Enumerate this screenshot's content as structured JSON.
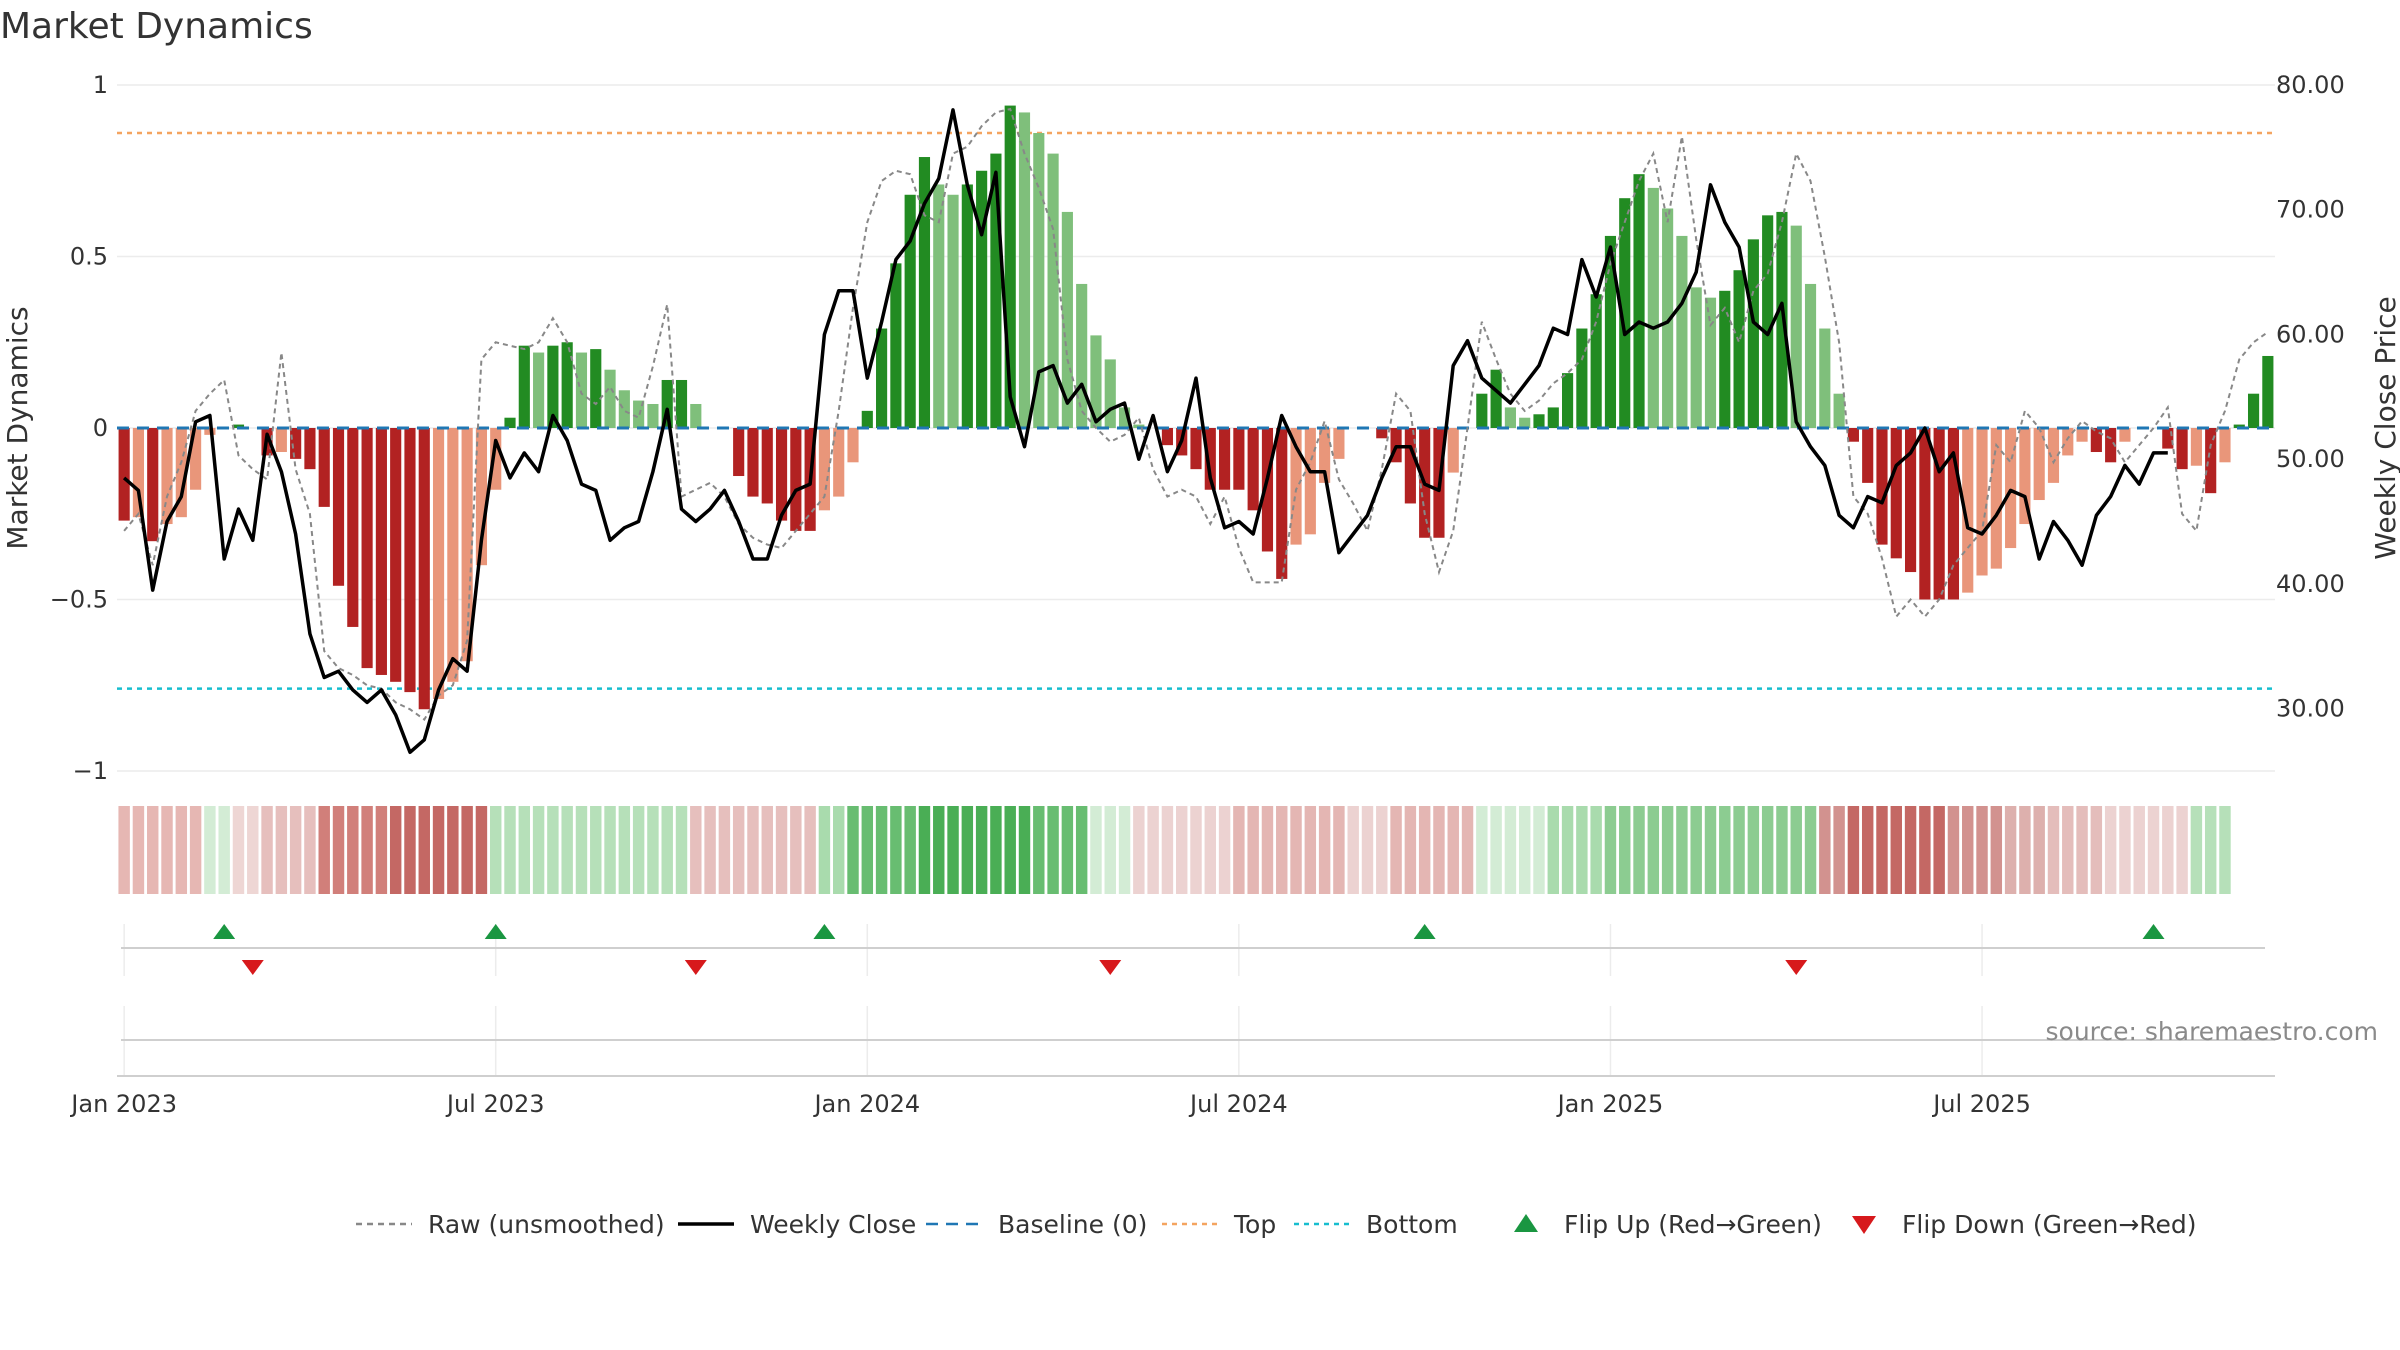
{
  "chart_data": {
    "type": "bar",
    "title": "Market Dynamics",
    "ylabel": "Market Dynamics",
    "y2label": "Weekly Close Price",
    "ylim": [
      -1,
      1
    ],
    "y2lim": [
      25,
      80
    ],
    "y_ticks": [
      "1",
      "0.5",
      "0",
      "−0.5",
      "−1"
    ],
    "y_tick_values": [
      1,
      0.5,
      0,
      -0.5,
      -1
    ],
    "y2_ticks": [
      "80.00",
      "70.00",
      "60.00",
      "50.00",
      "40.00",
      "30.00"
    ],
    "y2_tick_values": [
      80,
      70,
      60,
      50,
      40,
      30
    ],
    "x_ticks": [
      "Jan 2023",
      "Jul 2023",
      "Jan 2024",
      "Jul 2024",
      "Jan 2025",
      "Jul 2025"
    ],
    "x_tick_weeks": [
      1,
      27,
      53,
      79,
      105,
      131
    ],
    "top_level": 0.86,
    "bottom_level": -0.76,
    "grid": true,
    "legend_position": "bottom-center",
    "source": "source: sharemaestro.com",
    "colors": {
      "strong_green": "#228b22",
      "light_green": "#7fbf7b",
      "strong_red": "#b22222",
      "light_red": "#e9967a",
      "price": "#000000",
      "raw": "#888888",
      "baseline": "#1f77b4",
      "top": "#f4a460",
      "bottom": "#17becf",
      "flip_up": "#1a9641",
      "flip_down": "#d7191c"
    },
    "bar_values": [
      -0.27,
      -0.26,
      -0.33,
      -0.28,
      -0.26,
      -0.18,
      -0.02,
      0,
      0.01,
      0,
      -0.08,
      -0.07,
      -0.09,
      -0.12,
      -0.23,
      -0.46,
      -0.58,
      -0.7,
      -0.72,
      -0.74,
      -0.77,
      -0.82,
      -0.79,
      -0.74,
      -0.68,
      -0.4,
      -0.18,
      0.03,
      0.24,
      0.22,
      0.24,
      0.25,
      0.22,
      0.23,
      0.17,
      0.11,
      0.08,
      0.07,
      0.14,
      0.14,
      0.07,
      0,
      0,
      -0.14,
      -0.2,
      -0.22,
      -0.27,
      -0.3,
      -0.3,
      -0.24,
      -0.2,
      -0.1,
      0.05,
      0.29,
      0.48,
      0.68,
      0.79,
      0.71,
      0.68,
      0.71,
      0.75,
      0.8,
      0.94,
      0.92,
      0.86,
      0.8,
      0.63,
      0.42,
      0.27,
      0.2,
      0.06,
      0.01,
      0,
      -0.05,
      -0.08,
      -0.12,
      -0.18,
      -0.18,
      -0.18,
      -0.24,
      -0.36,
      -0.44,
      -0.34,
      -0.31,
      -0.16,
      -0.09,
      0,
      0,
      -0.03,
      -0.1,
      -0.22,
      -0.32,
      -0.32,
      -0.13,
      0,
      0.1,
      0.17,
      0.06,
      0.03,
      0.04,
      0.06,
      0.16,
      0.29,
      0.39,
      0.56,
      0.67,
      0.74,
      0.7,
      0.64,
      0.56,
      0.41,
      0.38,
      0.4,
      0.46,
      0.55,
      0.62,
      0.63,
      0.59,
      0.42,
      0.29,
      0.1,
      -0.04,
      -0.16,
      -0.34,
      -0.38,
      -0.42,
      -0.5,
      -0.5,
      -0.5,
      -0.48,
      -0.43,
      -0.41,
      -0.35,
      -0.28,
      -0.21,
      -0.16,
      -0.08,
      -0.04,
      -0.07,
      -0.1,
      -0.04,
      0,
      0,
      -0.06,
      -0.12,
      -0.11,
      -0.19,
      -0.1,
      0.01,
      0.1,
      0.21
    ],
    "raw_values": [
      -0.3,
      -0.25,
      -0.4,
      -0.2,
      -0.1,
      0.05,
      0.1,
      0.14,
      -0.08,
      -0.12,
      -0.15,
      0.22,
      -0.12,
      -0.25,
      -0.65,
      -0.7,
      -0.72,
      -0.75,
      -0.76,
      -0.8,
      -0.82,
      -0.85,
      -0.78,
      -0.75,
      -0.62,
      0.2,
      0.25,
      0.24,
      0.23,
      0.25,
      0.32,
      0.25,
      0.1,
      0.07,
      0.12,
      0.05,
      0.03,
      0.18,
      0.36,
      -0.2,
      -0.18,
      -0.16,
      -0.2,
      -0.28,
      -0.32,
      -0.34,
      -0.35,
      -0.3,
      -0.25,
      -0.2,
      0.05,
      0.35,
      0.6,
      0.72,
      0.75,
      0.74,
      0.62,
      0.6,
      0.8,
      0.82,
      0.88,
      0.92,
      0.93,
      0.8,
      0.7,
      0.58,
      0.2,
      0.05,
      0,
      -0.04,
      -0.02,
      0.03,
      -0.12,
      -0.2,
      -0.18,
      -0.2,
      -0.28,
      -0.2,
      -0.35,
      -0.45,
      -0.45,
      -0.45,
      -0.18,
      -0.1,
      0.02,
      -0.15,
      -0.22,
      -0.3,
      -0.12,
      0.1,
      0.05,
      -0.25,
      -0.42,
      -0.3,
      0.0,
      0.31,
      0.2,
      0.1,
      0.05,
      0.08,
      0.13,
      0.16,
      0.2,
      0.31,
      0.48,
      0.6,
      0.72,
      0.8,
      0.6,
      0.85,
      0.55,
      0.3,
      0.35,
      0.25,
      0.4,
      0.45,
      0.6,
      0.8,
      0.72,
      0.5,
      0.25,
      -0.2,
      -0.25,
      -0.38,
      -0.55,
      -0.5,
      -0.55,
      -0.5,
      -0.4,
      -0.35,
      -0.3,
      -0.05,
      -0.1,
      0.05,
      0.0,
      -0.1,
      -0.03,
      0.02,
      -0.01,
      -0.03,
      -0.1,
      -0.05,
      0.0,
      0.06,
      -0.25,
      -0.3,
      -0.05,
      0.05,
      0.2,
      0.25,
      0.28
    ],
    "price_values": [
      48.5,
      47.5,
      39.5,
      45,
      47,
      53,
      53.5,
      42,
      46,
      43.5,
      52,
      49,
      44,
      36,
      32.5,
      33,
      31.5,
      30.5,
      31.5,
      29.5,
      26.5,
      27.5,
      31.5,
      34,
      33,
      43.5,
      51.5,
      48.5,
      50.5,
      49,
      53.5,
      51.5,
      48,
      47.5,
      43.5,
      44.5,
      45,
      49,
      54,
      46,
      45,
      46,
      47.5,
      45,
      42,
      42,
      45.5,
      47.5,
      48,
      60,
      63.5,
      63.5,
      56.5,
      61,
      66,
      67.5,
      70.5,
      72.5,
      78,
      72,
      68,
      73,
      55,
      51,
      57,
      57.5,
      54.5,
      56,
      53,
      54,
      54.5,
      50,
      53.5,
      49,
      51.5,
      56.5,
      48.5,
      44.5,
      45,
      44,
      48.5,
      53.5,
      51,
      49,
      49,
      42.5,
      44,
      45.5,
      48.5,
      51,
      51,
      48,
      47.5,
      57.5,
      59.5,
      56.5,
      55.5,
      54.5,
      56,
      57.5,
      60.5,
      60,
      66,
      63,
      67,
      60,
      61,
      60.5,
      61,
      62.5,
      65,
      72,
      69,
      67,
      61,
      60,
      62.5,
      53,
      51,
      49.5,
      45.5,
      44.5,
      47,
      46.5,
      49.5,
      50.5,
      52.5,
      49,
      50.5,
      44.5,
      44,
      45.5,
      47.5,
      47,
      42,
      45,
      43.5,
      41.5,
      45.5,
      47,
      49.5,
      48,
      50.5,
      50.5
    ],
    "heat_colors": [
      "#e6b7b3",
      "#e6b7b3",
      "#e6b7b3",
      "#e6b7b3",
      "#e6b7b3",
      "#e6b7b3",
      "#d3ecd5",
      "#d3ecd5",
      "#eed6d4",
      "#eed6d4",
      "#e6bfbd",
      "#e6bfbd",
      "#e6bfbd",
      "#e6bfbd",
      "#d17f7a",
      "#d17f7a",
      "#d17f7a",
      "#d17f7a",
      "#d17f7a",
      "#c46864",
      "#c46864",
      "#c46864",
      "#c46864",
      "#c46864",
      "#c46864",
      "#c46864",
      "#b6e0b9",
      "#b6e0b9",
      "#b6e0b9",
      "#b6e0b9",
      "#b6e0b9",
      "#b6e0b9",
      "#b6e0b9",
      "#b6e0b9",
      "#b6e0b9",
      "#b6e0b9",
      "#b6e0b9",
      "#b6e0b9",
      "#b6e0b9",
      "#b6e0b9",
      "#e6bfbd",
      "#e6bfbd",
      "#e6bfbd",
      "#e6bfbd",
      "#e6bfbd",
      "#e6bfbd",
      "#e6bfbd",
      "#e6bfbd",
      "#e6bfbd",
      "#a9dbad",
      "#a9dbad",
      "#68bd71",
      "#68bd71",
      "#68bd71",
      "#68bd71",
      "#68bd71",
      "#4aae55",
      "#4aae55",
      "#4aae55",
      "#4aae55",
      "#4aae55",
      "#4aae55",
      "#4aae55",
      "#4aae55",
      "#68bd71",
      "#68bd71",
      "#68bd71",
      "#68bd71",
      "#d3ecd5",
      "#d3ecd5",
      "#d3ecd5",
      "#ecd2d1",
      "#ecd2d1",
      "#ecd2d1",
      "#ecd2d1",
      "#ecd2d1",
      "#ecd2d1",
      "#ecd2d1",
      "#e4b6b3",
      "#e4b6b3",
      "#e4b6b3",
      "#e4b6b3",
      "#e4b6b3",
      "#e4b6b3",
      "#e4b6b3",
      "#e4b6b3",
      "#ecd2d1",
      "#ecd2d1",
      "#ecd2d1",
      "#e4b6b3",
      "#e4b6b3",
      "#e4b6b3",
      "#e4b6b3",
      "#e4b6b3",
      "#e4b6b3",
      "#d3ecd5",
      "#d3ecd5",
      "#d3ecd5",
      "#d3ecd5",
      "#d3ecd5",
      "#a9dbad",
      "#a9dbad",
      "#a9dbad",
      "#a9dbad",
      "#8ccc91",
      "#8ccc91",
      "#8ccc91",
      "#8ccc91",
      "#8ccc91",
      "#8ccc91",
      "#8ccc91",
      "#8ccc91",
      "#8ccc91",
      "#8ccc91",
      "#8ccc91",
      "#8ccc91",
      "#8ccc91",
      "#8ccc91",
      "#8ccc91",
      "#d2928f",
      "#d2928f",
      "#c46864",
      "#c46864",
      "#c46864",
      "#c46864",
      "#c46864",
      "#c46864",
      "#c46864",
      "#d2928f",
      "#d2928f",
      "#d2928f",
      "#d2928f",
      "#ddb0ad",
      "#ddb0ad",
      "#ddb0ad",
      "#e4bdbb",
      "#e4bdbb",
      "#e4bdbb",
      "#e4bdbb",
      "#ecd2d1",
      "#ecd2d1",
      "#ecd2d1",
      "#ecd2d1",
      "#ecd2d1",
      "#ecd2d1",
      "#b6e0b9",
      "#b6e0b9",
      "#b6e0b9"
    ],
    "flip_up_weeks": [
      8,
      27,
      50,
      92,
      143
    ],
    "flip_down_weeks": [
      10,
      41,
      70,
      118
    ],
    "legend": [
      {
        "label": "Raw (unsmoothed)",
        "kind": "dashed-line",
        "color": "#888888"
      },
      {
        "label": "Weekly Close",
        "kind": "solid-line",
        "color": "#000000"
      },
      {
        "label": "Baseline (0)",
        "kind": "dashed-line",
        "color": "#1f77b4"
      },
      {
        "label": "Top",
        "kind": "dotted-line",
        "color": "#f4a460"
      },
      {
        "label": "Bottom",
        "kind": "dotted-line",
        "color": "#17becf"
      },
      {
        "label": "Flip Up (Red→Green)",
        "kind": "triangle-up",
        "color": "#1a9641"
      },
      {
        "label": "Flip Down (Green→Red)",
        "kind": "triangle-down",
        "color": "#d7191c"
      }
    ]
  }
}
